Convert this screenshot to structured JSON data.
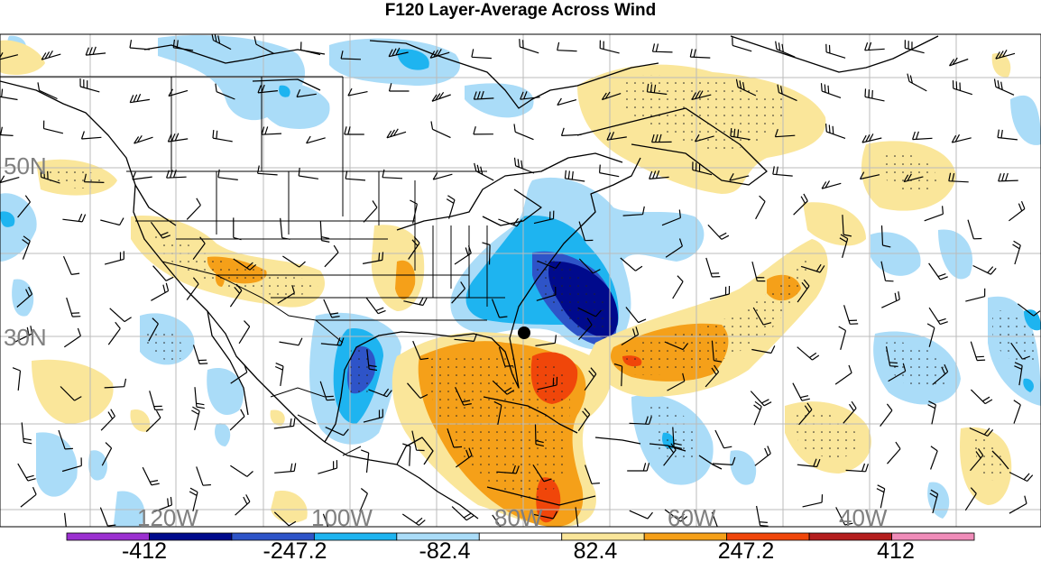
{
  "title": "F120 Layer-Average Across Wind",
  "map": {
    "lat_labels": [
      "50N",
      "30N"
    ],
    "lon_labels": [
      "120W",
      "100W",
      "80W",
      "60W",
      "40W"
    ]
  },
  "colorbar": {
    "colors": [
      "#9b30d0",
      "#000a8c",
      "#2e54c8",
      "#1eb4f0",
      "#aadcf8",
      "#ffffff",
      "#fae69a",
      "#f5a019",
      "#f0460a",
      "#b41e1e",
      "#f08cb9"
    ],
    "tick_labels": [
      "-412",
      "-247.2",
      "-82.4",
      "82.4",
      "247.2",
      "412"
    ]
  },
  "colors": {
    "ocean_background": "#ffffff",
    "coastline": "#000000",
    "grid": "#bbbbbb",
    "storm_marker": "#000000"
  },
  "icons": {
    "storm_marker": "storm-center-dot-icon",
    "wind_barb": "wind-barb-icon"
  }
}
